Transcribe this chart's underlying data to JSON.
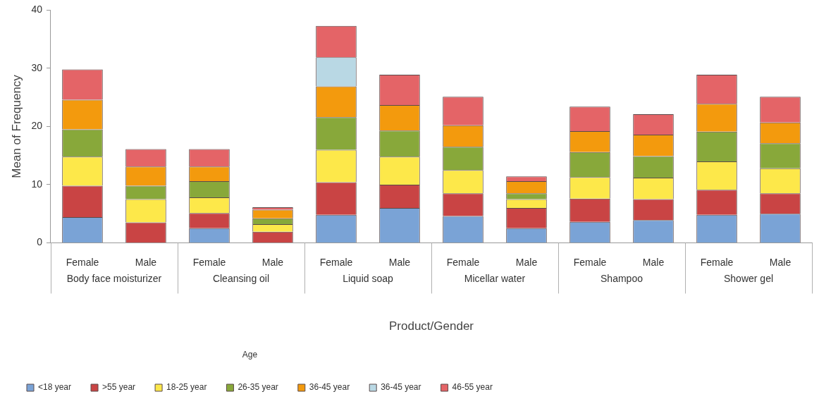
{
  "chart_data": {
    "type": "bar",
    "stacked": true,
    "xlabel": "Product/Gender",
    "ylabel": "Mean of Frequency",
    "legend_title": "Age",
    "legend": "bottom left",
    "grid": false,
    "categories": [
      "Female",
      "Male",
      "Female",
      "Male",
      "Female",
      "Male",
      "Female",
      "Male",
      "Female",
      "Male",
      "Female",
      "Male"
    ],
    "annotations": [
      "Body face moisturizer",
      "Cleansing oil",
      "Liquid soap",
      "Micellar water",
      "Shampoo",
      "Shower gel"
    ],
    "ylim": [
      0,
      40
    ],
    "yticks": [
      0,
      10,
      20,
      30,
      40
    ],
    "series": [
      {
        "name": "<18 year",
        "color": "#7aa3d6",
        "values": [
          4.4,
          null,
          2.5,
          null,
          4.8,
          6.0,
          4.6,
          2.5,
          3.6,
          3.9,
          4.8,
          5.0
        ]
      },
      {
        "name": ">55 year",
        "color": "#c94444",
        "values": [
          5.4,
          3.5,
          2.6,
          1.9,
          5.6,
          4.0,
          3.9,
          3.5,
          4.0,
          3.6,
          4.3,
          3.5
        ]
      },
      {
        "name": "18-25 year",
        "color": "#fde84a",
        "values": [
          5.0,
          4.0,
          2.7,
          1.3,
          5.6,
          4.8,
          4.0,
          1.5,
          3.7,
          3.7,
          4.9,
          4.3
        ]
      },
      {
        "name": "26-35 year",
        "color": "#88a83a",
        "values": [
          4.7,
          2.3,
          2.8,
          1.0,
          5.6,
          4.5,
          4.0,
          1.0,
          4.3,
          3.7,
          5.1,
          4.3
        ]
      },
      {
        "name": "36-45 year",
        "color": "#f39a0d",
        "values": [
          5.1,
          3.3,
          2.5,
          1.5,
          5.3,
          4.4,
          3.7,
          2.1,
          3.6,
          3.7,
          4.8,
          3.6
        ]
      },
      {
        "name": "36-45 year",
        "color": "#b9d8e4",
        "values": [
          null,
          null,
          null,
          null,
          5.0,
          null,
          null,
          null,
          null,
          null,
          null,
          null
        ]
      },
      {
        "name": "46-55 year",
        "color": "#e46467",
        "values": [
          5.2,
          3.0,
          3.0,
          0.4,
          5.4,
          5.2,
          4.9,
          0.8,
          4.2,
          3.5,
          5.0,
          4.4
        ]
      }
    ]
  }
}
